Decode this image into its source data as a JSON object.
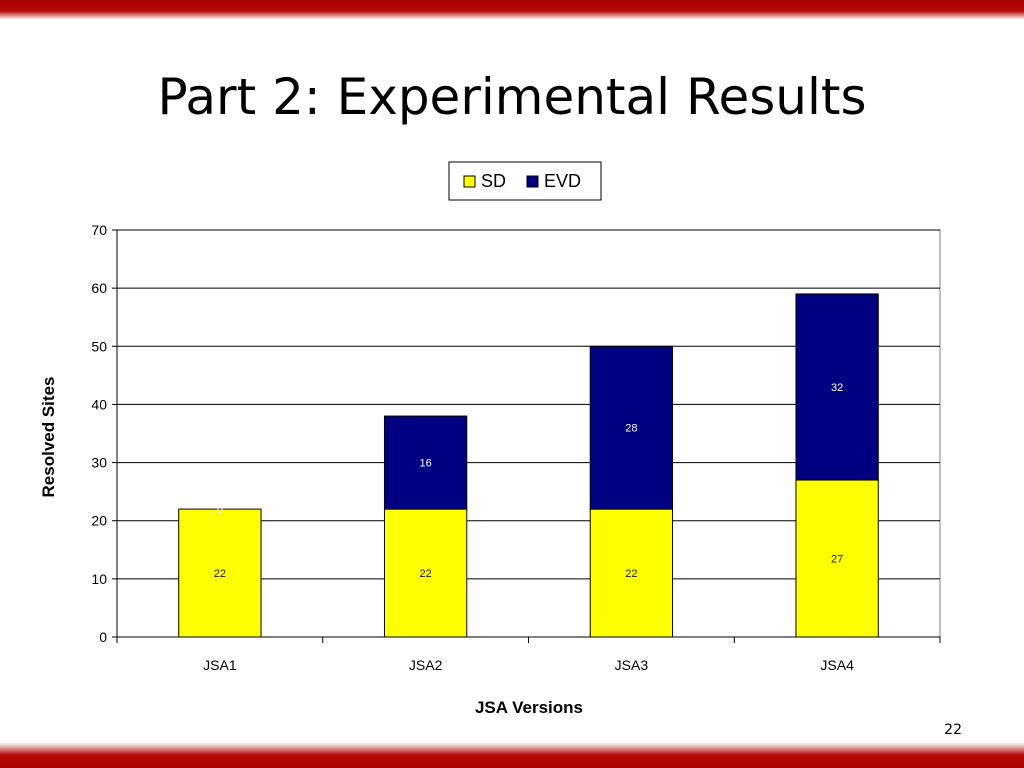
{
  "slide": {
    "title": "Part 2: Experimental Results",
    "page_number": "22"
  },
  "colors": {
    "band": "#b00000",
    "sd": "#ffff00",
    "evd": "#000080",
    "label_on_sd": "#1a1a1a",
    "label_on_evd": "#ffffff"
  },
  "chart_data": {
    "type": "bar",
    "stacked": true,
    "categories": [
      "JSA1",
      "JSA2",
      "JSA3",
      "JSA4"
    ],
    "series": [
      {
        "name": "SD",
        "values": [
          22,
          22,
          22,
          27
        ],
        "color": "#ffff00"
      },
      {
        "name": "EVD",
        "values": [
          0,
          16,
          28,
          32
        ],
        "color": "#000080"
      }
    ],
    "xlabel": "JSA Versions",
    "ylabel": "Resolved Sites",
    "ylim": [
      0,
      70
    ],
    "yticks": [
      "0",
      "10",
      "20",
      "30",
      "40",
      "50",
      "60",
      "70"
    ],
    "grid": true,
    "legend": "top-center"
  }
}
